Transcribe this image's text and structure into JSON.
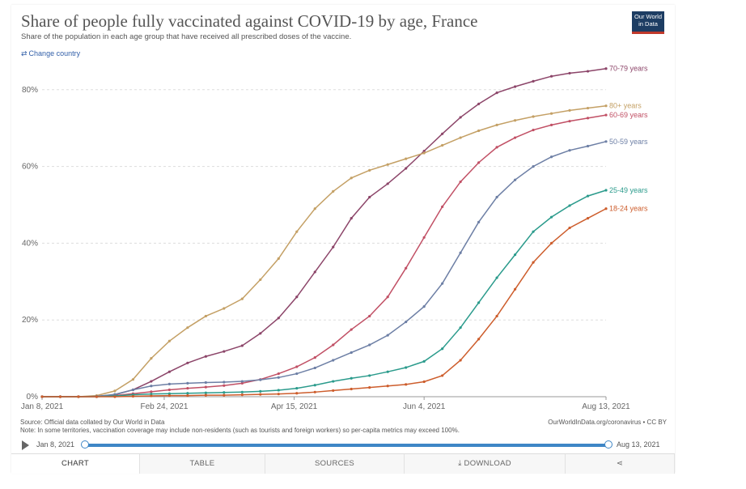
{
  "header": {
    "title": "Share of people fully vaccinated against COVID-19 by age, France",
    "subtitle": "Share of the population in each age group that have received all prescribed doses of the vaccine.",
    "logo": "Our World in Data",
    "change_country": "Change country",
    "change_icon": "swap-arrows-icon"
  },
  "footer": {
    "source": "Source: Official data collated by Our World in Data",
    "note": "Note: In some territories, vaccination coverage may include non-residents (such as tourists and foreign workers) so per-capita metrics may exceed 100%.",
    "credit": "OurWorldInData.org/coronavirus • CC BY"
  },
  "timeline": {
    "start": "Jan 8, 2021",
    "end": "Aug 13, 2021"
  },
  "tabs": [
    {
      "label": "CHART",
      "active": true
    },
    {
      "label": "TABLE",
      "active": false
    },
    {
      "label": "SOURCES",
      "active": false
    },
    {
      "label": "DOWNLOAD",
      "active": false,
      "icon": "download-icon"
    },
    {
      "label": "",
      "active": false,
      "icon": "share-icon"
    }
  ],
  "chart_data": {
    "type": "line",
    "title": "Share of people fully vaccinated against COVID-19 by age, France",
    "x_ticks": [
      "Jan 8, 2021",
      "Feb 24, 2021",
      "Apr 15, 2021",
      "Jun 4, 2021",
      "Aug 13, 2021"
    ],
    "y_ticks": [
      "0%",
      "20%",
      "40%",
      "60%",
      "80%"
    ],
    "ylim": [
      0,
      85
    ],
    "grid": "horizontal dashed",
    "legend": "line-end labels",
    "x": [
      "2021-01-08",
      "2021-01-15",
      "2021-01-22",
      "2021-01-29",
      "2021-02-05",
      "2021-02-12",
      "2021-02-19",
      "2021-02-26",
      "2021-03-05",
      "2021-03-12",
      "2021-03-19",
      "2021-03-26",
      "2021-04-02",
      "2021-04-09",
      "2021-04-16",
      "2021-04-23",
      "2021-04-30",
      "2021-05-07",
      "2021-05-14",
      "2021-05-21",
      "2021-05-28",
      "2021-06-04",
      "2021-06-11",
      "2021-06-18",
      "2021-06-25",
      "2021-07-02",
      "2021-07-09",
      "2021-07-16",
      "2021-07-23",
      "2021-07-30",
      "2021-08-06",
      "2021-08-13"
    ],
    "series": [
      {
        "name": "70-79 years",
        "color": "#8c4569",
        "values": [
          0,
          0,
          0,
          0.1,
          0.5,
          1.8,
          4.0,
          6.5,
          8.8,
          10.5,
          11.8,
          13.3,
          16.5,
          20.5,
          26,
          32.5,
          39,
          46.5,
          52,
          55.5,
          59.5,
          64,
          68.5,
          72.8,
          76.3,
          79.2,
          80.8,
          82.2,
          83.5,
          84.3,
          84.8,
          85.5
        ]
      },
      {
        "name": "80+ years",
        "color": "#c4a065",
        "values": [
          0,
          0,
          0,
          0.3,
          1.5,
          4.5,
          10,
          14.5,
          18,
          21,
          23,
          25.5,
          30.5,
          36,
          43,
          49,
          53.5,
          57,
          59,
          60.5,
          62,
          63.5,
          65.5,
          67.5,
          69.3,
          70.8,
          72,
          73,
          73.8,
          74.6,
          75.2,
          75.8
        ]
      },
      {
        "name": "60-69 years",
        "color": "#c15065",
        "values": [
          0,
          0,
          0,
          0,
          0.3,
          0.8,
          1.3,
          1.8,
          2.2,
          2.5,
          2.9,
          3.5,
          4.5,
          6,
          7.8,
          10.2,
          13.5,
          17.5,
          21,
          26,
          33.5,
          41.5,
          49.5,
          56,
          61,
          65,
          67.5,
          69.5,
          70.8,
          71.8,
          72.6,
          73.4
        ]
      },
      {
        "name": "50-59 years",
        "color": "#6d7fa5",
        "values": [
          0,
          0,
          0,
          0.1,
          0.6,
          1.8,
          2.8,
          3.3,
          3.5,
          3.7,
          3.8,
          4.0,
          4.4,
          5.0,
          6.0,
          7.5,
          9.5,
          11.5,
          13.5,
          16,
          19.5,
          23.5,
          29.5,
          37.5,
          45.5,
          52,
          56.5,
          60,
          62.5,
          64.2,
          65.3,
          66.5
        ]
      },
      {
        "name": "25-49 years",
        "color": "#2b9b8c",
        "values": [
          0,
          0,
          0,
          0,
          0.2,
          0.5,
          0.7,
          0.8,
          0.9,
          1.0,
          1.1,
          1.2,
          1.4,
          1.7,
          2.2,
          3.0,
          4.0,
          4.8,
          5.5,
          6.5,
          7.6,
          9.2,
          12.5,
          18,
          24.5,
          31,
          37,
          43,
          46.8,
          49.8,
          52.3,
          53.8
        ]
      },
      {
        "name": "18-24 years",
        "color": "#cd5d2c",
        "values": [
          0,
          0,
          0,
          0,
          0,
          0.1,
          0.2,
          0.3,
          0.3,
          0.4,
          0.4,
          0.5,
          0.6,
          0.7,
          0.9,
          1.2,
          1.6,
          2.0,
          2.4,
          2.8,
          3.2,
          3.9,
          5.5,
          9.5,
          15,
          21,
          28,
          35,
          40,
          44,
          46.5,
          49
        ]
      }
    ]
  }
}
